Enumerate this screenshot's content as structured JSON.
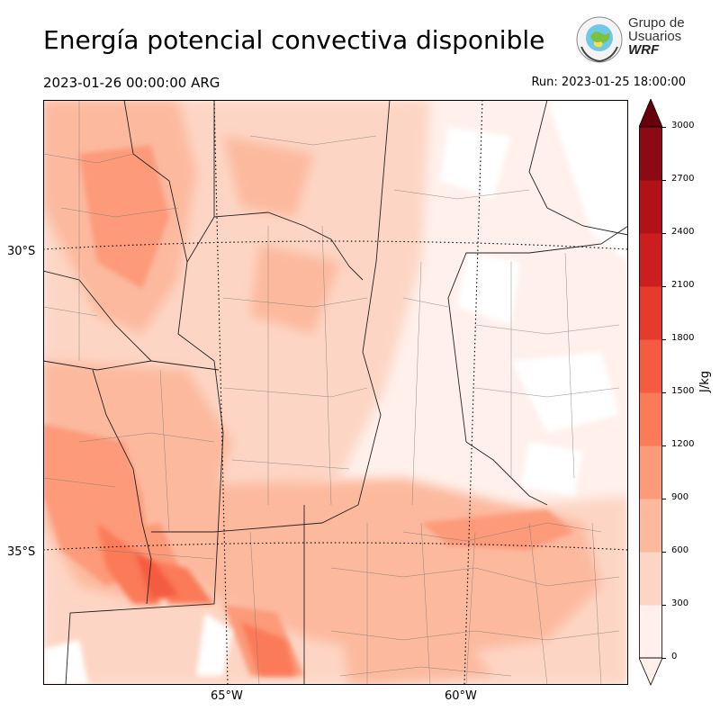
{
  "title": "Energía potencial convectiva disponible",
  "valid_time": "2023-01-26 00:00:00 ARG",
  "run_time": "Run: 2023-01-25 18:00:00",
  "logo": {
    "line1": "Grupo de",
    "line2": "Usuarios",
    "line3": "WRF",
    "icon": "wrf-group-globe-logo"
  },
  "map": {
    "projection": "lambert-conformal",
    "lat_labels": [
      "30°S",
      "35°S"
    ],
    "lon_labels": [
      "65°W",
      "60°W"
    ],
    "gridlines": "dotted",
    "boundaries": [
      "country",
      "province",
      "department"
    ]
  },
  "colorbar": {
    "unit": "J/kg",
    "ticks": [
      "0",
      "300",
      "600",
      "900",
      "1200",
      "1500",
      "1800",
      "2100",
      "2400",
      "2700",
      "3000"
    ],
    "colors": [
      "#fff0eb",
      "#fdd5c4",
      "#fcb99e",
      "#fc9a79",
      "#fb7a58",
      "#f45b40",
      "#e63a2d",
      "#cc1d1f",
      "#b11218",
      "#8b0a14",
      "#67000d"
    ],
    "extend": "both"
  }
}
